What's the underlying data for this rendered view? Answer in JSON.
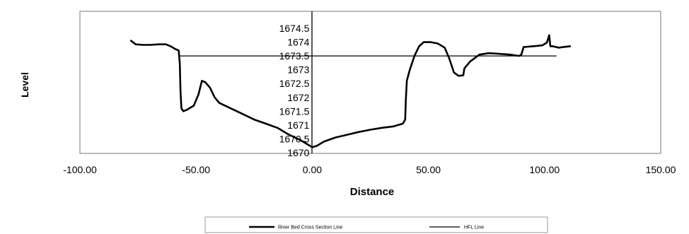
{
  "chart_data": {
    "type": "line",
    "xlabel": "Distance",
    "ylabel": "Level",
    "xlim": [
      -100,
      150
    ],
    "ylim": [
      1670,
      1674.5
    ],
    "x_ticks": [
      "-100.00",
      "-50.00",
      "0.00",
      "50.00",
      "100.00",
      "150.00"
    ],
    "y_ticks": [
      "1670",
      "1670.5",
      "1671",
      "1671.5",
      "1672",
      "1672.5",
      "1673",
      "1673.5",
      "1674",
      "1674.5"
    ],
    "grid": false,
    "legend_position": "bottom",
    "series": [
      {
        "name": "River Bed Cross Section Line",
        "color": "#000000",
        "points": [
          [
            -78,
            1674.05
          ],
          [
            -76,
            1673.92
          ],
          [
            -73,
            1673.9
          ],
          [
            -70,
            1673.9
          ],
          [
            -66,
            1673.92
          ],
          [
            -63,
            1673.92
          ],
          [
            -61,
            1673.85
          ],
          [
            -59,
            1673.75
          ],
          [
            -57.5,
            1673.7
          ],
          [
            -57,
            1673.2
          ],
          [
            -56.7,
            1672.2
          ],
          [
            -56.3,
            1671.6
          ],
          [
            -55.5,
            1671.5
          ],
          [
            -54,
            1671.55
          ],
          [
            -51,
            1671.7
          ],
          [
            -49,
            1672.1
          ],
          [
            -47.5,
            1672.6
          ],
          [
            -46,
            1672.55
          ],
          [
            -44,
            1672.35
          ],
          [
            -42,
            1672.0
          ],
          [
            -40,
            1671.8
          ],
          [
            -35,
            1671.6
          ],
          [
            -30,
            1671.4
          ],
          [
            -25,
            1671.2
          ],
          [
            -20,
            1671.05
          ],
          [
            -15,
            1670.9
          ],
          [
            -10,
            1670.65
          ],
          [
            -5,
            1670.45
          ],
          [
            -2,
            1670.3
          ],
          [
            0,
            1670.2
          ],
          [
            2,
            1670.25
          ],
          [
            5,
            1670.4
          ],
          [
            10,
            1670.55
          ],
          [
            15,
            1670.65
          ],
          [
            20,
            1670.75
          ],
          [
            25,
            1670.83
          ],
          [
            30,
            1670.9
          ],
          [
            35,
            1670.95
          ],
          [
            39,
            1671.05
          ],
          [
            40,
            1671.2
          ],
          [
            40.3,
            1671.9
          ],
          [
            40.7,
            1672.6
          ],
          [
            42,
            1673.0
          ],
          [
            44,
            1673.5
          ],
          [
            46,
            1673.85
          ],
          [
            48,
            1674.0
          ],
          [
            51,
            1674.0
          ],
          [
            54,
            1673.95
          ],
          [
            57,
            1673.8
          ],
          [
            59,
            1673.4
          ],
          [
            61,
            1672.9
          ],
          [
            63,
            1672.78
          ],
          [
            65,
            1672.8
          ],
          [
            65.5,
            1673.05
          ],
          [
            68,
            1673.3
          ],
          [
            72,
            1673.55
          ],
          [
            76,
            1673.6
          ],
          [
            80,
            1673.58
          ],
          [
            85,
            1673.55
          ],
          [
            89,
            1673.5
          ],
          [
            90,
            1673.55
          ],
          [
            91,
            1673.82
          ],
          [
            95,
            1673.85
          ],
          [
            99,
            1673.88
          ],
          [
            101,
            1673.98
          ],
          [
            102,
            1674.25
          ],
          [
            102.5,
            1673.85
          ],
          [
            103.5,
            1673.85
          ],
          [
            106,
            1673.8
          ],
          [
            108,
            1673.82
          ],
          [
            111,
            1673.85
          ]
        ]
      },
      {
        "name": "HFL Line",
        "color": "#000000",
        "points": [
          [
            -57,
            1673.5
          ],
          [
            105,
            1673.5
          ]
        ]
      }
    ]
  }
}
